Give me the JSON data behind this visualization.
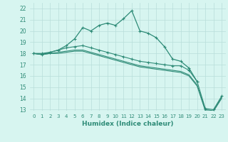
{
  "xlabel": "Humidex (Indice chaleur)",
  "x": [
    0,
    1,
    2,
    3,
    4,
    5,
    6,
    7,
    8,
    9,
    10,
    11,
    12,
    13,
    14,
    15,
    16,
    17,
    18,
    19,
    20,
    21,
    22,
    23
  ],
  "line1": [
    18.0,
    18.0,
    18.1,
    18.3,
    18.7,
    19.3,
    20.3,
    20.0,
    20.5,
    20.7,
    20.5,
    21.1,
    21.8,
    20.0,
    19.8,
    19.4,
    18.6,
    17.5,
    17.3,
    16.7,
    15.5,
    null,
    null,
    null
  ],
  "line2": [
    18.0,
    17.9,
    18.1,
    18.3,
    18.5,
    18.6,
    18.7,
    18.5,
    18.3,
    18.1,
    17.9,
    17.7,
    17.5,
    17.3,
    17.2,
    17.1,
    17.0,
    16.9,
    16.9,
    16.5,
    15.5,
    13.1,
    13.0,
    14.2
  ],
  "line3": [
    18.0,
    17.9,
    18.0,
    18.1,
    18.2,
    18.3,
    18.3,
    18.1,
    17.9,
    17.7,
    17.5,
    17.3,
    17.1,
    16.9,
    16.8,
    16.7,
    16.6,
    16.5,
    16.4,
    16.1,
    15.2,
    13.0,
    12.9,
    14.1
  ],
  "line4": [
    18.0,
    17.9,
    18.0,
    18.0,
    18.1,
    18.2,
    18.2,
    18.0,
    17.8,
    17.6,
    17.4,
    17.2,
    17.0,
    16.8,
    16.7,
    16.6,
    16.5,
    16.4,
    16.3,
    16.0,
    15.1,
    12.9,
    12.85,
    14.0
  ],
  "line_color": "#2e8b77",
  "bg_color": "#d7f5f0",
  "grid_color": "#b8deda",
  "ylim": [
    12.9,
    22.5
  ],
  "ylim_display": [
    13,
    22
  ],
  "yticks": [
    13,
    14,
    15,
    16,
    17,
    18,
    19,
    20,
    21,
    22
  ],
  "xticks": [
    0,
    1,
    2,
    3,
    4,
    5,
    6,
    7,
    8,
    9,
    10,
    11,
    12,
    13,
    14,
    15,
    16,
    17,
    18,
    19,
    20,
    21,
    22,
    23
  ]
}
